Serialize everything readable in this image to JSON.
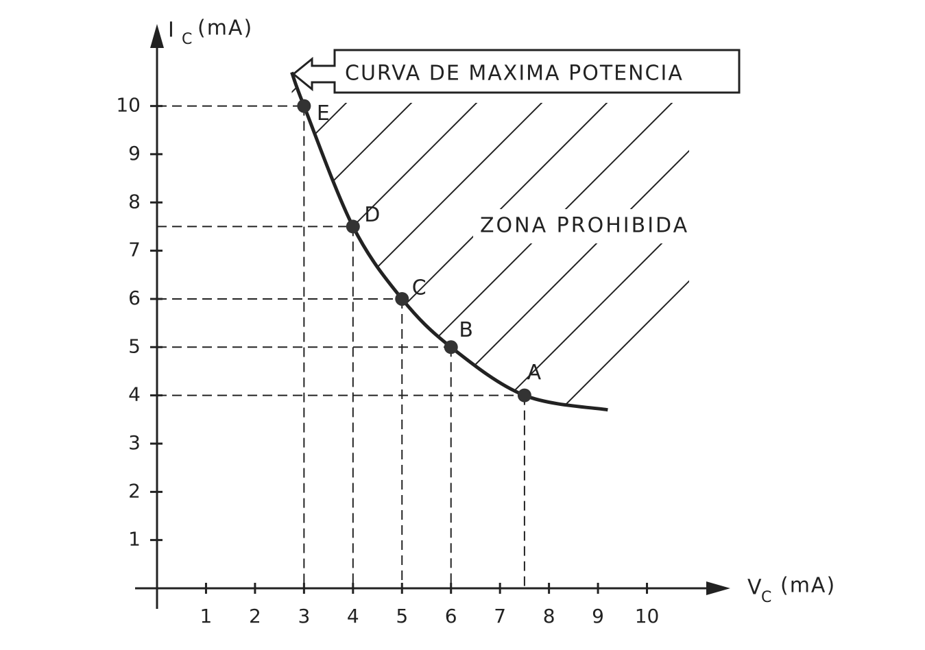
{
  "chart_data": {
    "type": "line",
    "y_label": {
      "main": "I",
      "sub": "C",
      "unit": "(mA)"
    },
    "x_label": {
      "main": "V",
      "sub": "C",
      "unit": "(mA)"
    },
    "annotations": {
      "callout": "CURVA DE MAXIMA POTENCIA",
      "zone": "ZONA PROHIBIDA"
    },
    "xlim": [
      0,
      11.7
    ],
    "ylim": [
      0,
      11.7
    ],
    "xticks": [
      1,
      2,
      3,
      4,
      5,
      6,
      7,
      8,
      9,
      10
    ],
    "yticks": [
      1,
      2,
      3,
      4,
      5,
      6,
      7,
      8,
      9,
      10
    ],
    "curve": {
      "x": [
        2.75,
        3,
        4,
        5,
        6,
        7.5,
        9.2
      ],
      "y": [
        10.7,
        10,
        7.5,
        6,
        5,
        4,
        3.7
      ],
      "color": "#222222"
    },
    "points": {
      "labels": [
        "E",
        "D",
        "C",
        "B",
        "A"
      ],
      "x": [
        3,
        4,
        5,
        6,
        7.5
      ],
      "y": [
        10,
        7.5,
        6,
        5,
        4
      ],
      "color": "#333333"
    }
  }
}
